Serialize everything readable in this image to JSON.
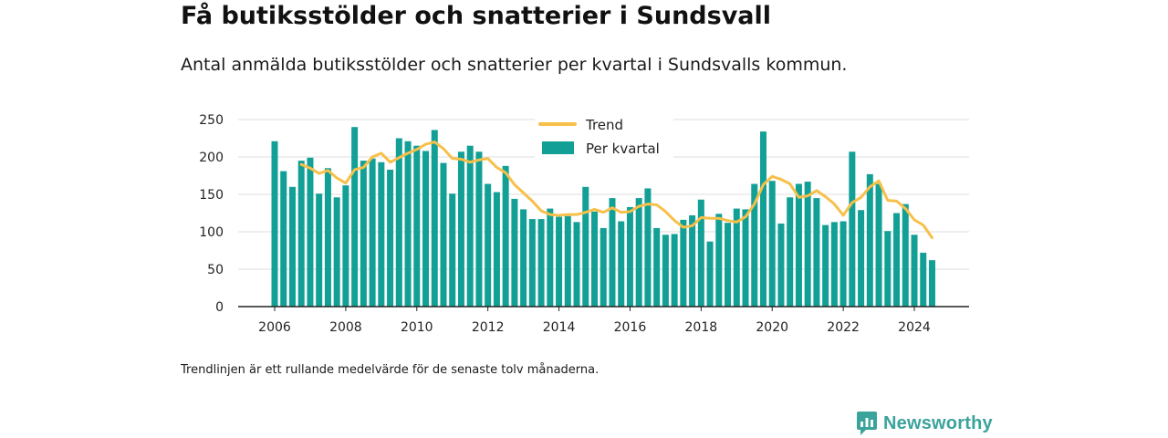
{
  "title": "Få butiksstölder och snatterier i Sundsvall",
  "subtitle": "Antal anmälda butiksstölder och snatterier per kvartal i Sundsvalls kommun.",
  "note": "Trendlinjen är ett rullande medelvärde för de senaste tolv månaderna.",
  "brand": {
    "name": "Newsworthy",
    "icon": "newsworthy-logo-icon"
  },
  "colors": {
    "bars": "#12a096",
    "trend": "#f7c04a",
    "grid": "#dddddd",
    "axis": "#222222"
  },
  "chart_data": {
    "type": "bar",
    "ylim": [
      0,
      250
    ],
    "y_ticks": [
      "0",
      "50",
      "100",
      "150",
      "200",
      "250"
    ],
    "x_ticks": [
      "2006",
      "2008",
      "2010",
      "2012",
      "2014",
      "2016",
      "2018",
      "2020",
      "2022",
      "2024"
    ],
    "grid": true,
    "legend_position": "top",
    "series": [
      {
        "name": "Per kvartal",
        "type": "bar",
        "x": [
          "2006 Q1",
          "2006 Q2",
          "2006 Q3",
          "2006 Q4",
          "2007 Q1",
          "2007 Q2",
          "2007 Q3",
          "2007 Q4",
          "2008 Q1",
          "2008 Q2",
          "2008 Q3",
          "2008 Q4",
          "2009 Q1",
          "2009 Q2",
          "2009 Q3",
          "2009 Q4",
          "2010 Q1",
          "2010 Q2",
          "2010 Q3",
          "2010 Q4",
          "2011 Q1",
          "2011 Q2",
          "2011 Q3",
          "2011 Q4",
          "2012 Q1",
          "2012 Q2",
          "2012 Q3",
          "2012 Q4",
          "2013 Q1",
          "2013 Q2",
          "2013 Q3",
          "2013 Q4",
          "2014 Q1",
          "2014 Q2",
          "2014 Q3",
          "2014 Q4",
          "2015 Q1",
          "2015 Q2",
          "2015 Q3",
          "2015 Q4",
          "2016 Q1",
          "2016 Q2",
          "2016 Q3",
          "2016 Q4",
          "2017 Q1",
          "2017 Q2",
          "2017 Q3",
          "2017 Q4",
          "2018 Q1",
          "2018 Q2",
          "2018 Q3",
          "2018 Q4",
          "2019 Q1",
          "2019 Q2",
          "2019 Q3",
          "2019 Q4",
          "2020 Q1",
          "2020 Q2",
          "2020 Q3",
          "2020 Q4",
          "2021 Q1",
          "2021 Q2",
          "2021 Q3",
          "2021 Q4",
          "2022 Q1",
          "2022 Q2",
          "2022 Q3",
          "2022 Q4",
          "2023 Q1",
          "2023 Q2",
          "2023 Q3",
          "2023 Q4",
          "2024 Q1",
          "2024 Q2",
          "2024 Q3"
        ],
        "values": [
          221,
          181,
          160,
          195,
          199,
          151,
          185,
          146,
          162,
          240,
          195,
          198,
          193,
          183,
          225,
          221,
          215,
          208,
          236,
          192,
          151,
          207,
          215,
          207,
          164,
          153,
          188,
          144,
          130,
          117,
          117,
          131,
          120,
          121,
          113,
          160,
          127,
          105,
          145,
          114,
          133,
          145,
          158,
          105,
          96,
          97,
          116,
          122,
          143,
          87,
          124,
          112,
          131,
          130,
          164,
          234,
          168,
          111,
          146,
          164,
          167,
          145,
          109,
          113,
          114,
          207,
          129,
          177,
          164,
          101,
          125,
          137,
          96,
          72,
          62
        ]
      },
      {
        "name": "Trend",
        "type": "line",
        "x": [
          "2006 Q4",
          "2007 Q1",
          "2007 Q2",
          "2007 Q3",
          "2007 Q4",
          "2008 Q1",
          "2008 Q2",
          "2008 Q3",
          "2008 Q4",
          "2009 Q1",
          "2009 Q2",
          "2009 Q3",
          "2009 Q4",
          "2010 Q1",
          "2010 Q2",
          "2010 Q3",
          "2010 Q4",
          "2011 Q1",
          "2011 Q2",
          "2011 Q3",
          "2011 Q4",
          "2012 Q1",
          "2012 Q2",
          "2012 Q3",
          "2012 Q4",
          "2013 Q1",
          "2013 Q2",
          "2013 Q3",
          "2013 Q4",
          "2014 Q1",
          "2014 Q2",
          "2014 Q3",
          "2014 Q4",
          "2015 Q1",
          "2015 Q2",
          "2015 Q3",
          "2015 Q4",
          "2016 Q1",
          "2016 Q2",
          "2016 Q3",
          "2016 Q4",
          "2017 Q1",
          "2017 Q2",
          "2017 Q3",
          "2017 Q4",
          "2018 Q1",
          "2018 Q2",
          "2018 Q3",
          "2018 Q4",
          "2019 Q1",
          "2019 Q2",
          "2019 Q3",
          "2019 Q4",
          "2020 Q1",
          "2020 Q2",
          "2020 Q3",
          "2020 Q4",
          "2021 Q1",
          "2021 Q2",
          "2021 Q3",
          "2021 Q4",
          "2022 Q1",
          "2022 Q2",
          "2022 Q3",
          "2022 Q4",
          "2023 Q1",
          "2023 Q2",
          "2023 Q3",
          "2023 Q4",
          "2024 Q1",
          "2024 Q2",
          "2024 Q3"
        ],
        "values": [
          190,
          185,
          178,
          182,
          172,
          165,
          183,
          186,
          200,
          205,
          193,
          199,
          205,
          210,
          217,
          220,
          211,
          198,
          197,
          193,
          196,
          198,
          186,
          179,
          163,
          152,
          141,
          128,
          123,
          122,
          123,
          123,
          126,
          130,
          126,
          132,
          126,
          127,
          134,
          137,
          136,
          127,
          115,
          106,
          108,
          119,
          118,
          118,
          115,
          113,
          120,
          137,
          163,
          174,
          170,
          164,
          146,
          148,
          155,
          147,
          137,
          122,
          139,
          146,
          160,
          168,
          142,
          141,
          131,
          116,
          109,
          92
        ]
      }
    ]
  }
}
